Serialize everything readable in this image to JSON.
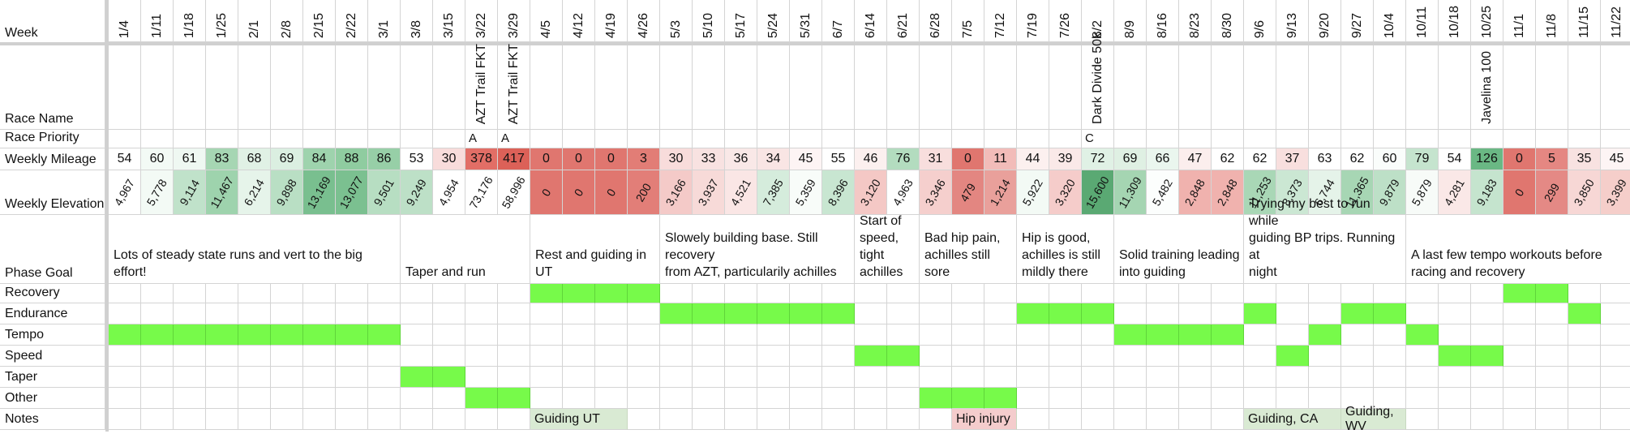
{
  "row_labels": {
    "week": "Week",
    "race_name": "Race Name",
    "race_priority": "Race Priority",
    "weekly_mileage": "Weekly Mileage",
    "weekly_elevation": "Weekly Elevation",
    "phase_goal": "Phase Goal",
    "recovery": "Recovery",
    "endurance": "Endurance",
    "tempo": "Tempo",
    "speed": "Speed",
    "taper": "Taper",
    "other": "Other",
    "notes": "Notes"
  },
  "weeks": [
    "1/4",
    "1/11",
    "1/18",
    "1/25",
    "2/1",
    "2/8",
    "2/15",
    "2/22",
    "3/1",
    "3/8",
    "3/15",
    "3/22",
    "3/29",
    "4/5",
    "4/12",
    "4/19",
    "4/26",
    "5/3",
    "5/10",
    "5/17",
    "5/24",
    "5/31",
    "6/7",
    "6/14",
    "6/21",
    "6/28",
    "7/5",
    "7/12",
    "7/19",
    "7/26",
    "8/2",
    "8/9",
    "8/16",
    "8/23",
    "8/30",
    "9/6",
    "9/13",
    "9/20",
    "9/27",
    "10/4",
    "10/11",
    "10/18",
    "10/25",
    "11/1",
    "11/8",
    "11/15",
    "11/22"
  ],
  "race_names": {
    "11": "AZT Trail FKT",
    "12": "AZT Trail FKT",
    "30": "Dark Divide 50k",
    "42": "Javelina 100"
  },
  "race_priorities": {
    "11": "A",
    "12": "A",
    "30": "C"
  },
  "weekly_mileage": [
    "54",
    "60",
    "61",
    "83",
    "68",
    "69",
    "84",
    "88",
    "86",
    "53",
    "30",
    "378",
    "417",
    "0",
    "0",
    "0",
    "3",
    "30",
    "33",
    "36",
    "34",
    "45",
    "55",
    "46",
    "76",
    "31",
    "0",
    "11",
    "44",
    "39",
    "72",
    "69",
    "66",
    "47",
    "62",
    "62",
    "37",
    "63",
    "62",
    "60",
    "79",
    "54",
    "126",
    "0",
    "5",
    "35",
    "45"
  ],
  "mileage_colors": [
    "#ffffff",
    "#f3faf5",
    "#eff8f2",
    "#a6d6b3",
    "#e0f1e5",
    "#dbefe1",
    "#9ed3ad",
    "#8fcca0",
    "#97cfa7",
    "#ffffff",
    "#f8dcdb",
    "#e26e66",
    "#dc6158",
    "#e0766f",
    "#e0766f",
    "#e0766f",
    "#e27d76",
    "#f8dcdb",
    "#f8e2e1",
    "#f9e8e7",
    "#f9e5e4",
    "#fdf4f4",
    "#ffffff",
    "#fcf0ef",
    "#b3dcbf",
    "#f8dedd",
    "#e0766f",
    "#f2bcb9",
    "#fcf0ef",
    "#fae9e8",
    "#e0f1e5",
    "#dff0e3",
    "#eaf6ee",
    "#fbeeed",
    "#ffffff",
    "#ffffff",
    "#f8dfde",
    "#ffffff",
    "#ffffff",
    "#fafdfb",
    "#c5e4ce",
    "#ffffff",
    "#6ab884",
    "#e0766f",
    "#e58782",
    "#f8e2e1",
    "#fdf4f4"
  ],
  "weekly_elevation": [
    "4,967",
    "5,778",
    "9,114",
    "11,467",
    "6,214",
    "9,898",
    "13,169",
    "13,077",
    "9,501",
    "9,249",
    "4,954",
    "73,176",
    "58,996",
    "0",
    "0",
    "0",
    "200",
    "3,166",
    "3,937",
    "4,521",
    "7,385",
    "5,359",
    "8,396",
    "3,120",
    "4,963",
    "3,346",
    "479",
    "1,214",
    "5,922",
    "3,320",
    "15,600",
    "11,309",
    "5,482",
    "2,848",
    "2,848",
    "11,253",
    "8,373",
    "6,744",
    "11,365",
    "9,879",
    "5,879",
    "4,281",
    "9,183",
    "0",
    "299",
    "3,850",
    "3,399"
  ],
  "elevation_colors": [
    "#ffffff",
    "#f3faf5",
    "#c0e2ca",
    "#9ed3ad",
    "#e6f4ea",
    "#b9dfc4",
    "#79bf8f",
    "#7bc090",
    "#b7dec2",
    "#bde0c7",
    "#ffffff",
    "#ffffff",
    "#ffffff",
    "#e0766f",
    "#e0766f",
    "#e0766f",
    "#e27e78",
    "#f4cac8",
    "#f7dad8",
    "#fae6e5",
    "#d5ecdc",
    "#f8fcf9",
    "#c8e6d1",
    "#f4c8c5",
    "#ffffff",
    "#f5cfcd",
    "#e38681",
    "#e9a09b",
    "#f3faf5",
    "#f5ccca",
    "#5aa973",
    "#a5d5b2",
    "#fcfefd",
    "#f0b2ae",
    "#f0b2ae",
    "#a9d7b6",
    "#cbe7d3",
    "#e5f3e9",
    "#a7d6b4",
    "#bde0c7",
    "#f7fbf8",
    "#fae8e7",
    "#c5e4ce",
    "#e0766f",
    "#e48985",
    "#f7d7d5",
    "#f5ceca"
  ],
  "phase_goals": [
    {
      "text": "Lots of steady state runs and vert to the big effort!",
      "start": 0,
      "span": 9
    },
    {
      "text": "Taper and run",
      "start": 9,
      "span": 4
    },
    {
      "text": "Rest and guiding in UT",
      "start": 13,
      "span": 4
    },
    {
      "text": "Slowely building base. Still recovery\nfrom AZT, particularily achilles",
      "start": 17,
      "span": 6
    },
    {
      "text": "Start of\nspeed,\ntight\nachilles",
      "start": 23,
      "span": 2
    },
    {
      "text": "Bad hip pain,\nachilles still sore",
      "start": 25,
      "span": 3
    },
    {
      "text": "Hip is good,\nachilles is still\nmildly there",
      "start": 28,
      "span": 3
    },
    {
      "text": "Solid training leading\ninto guiding",
      "start": 31,
      "span": 4
    },
    {
      "text": "Trying my best to run while\nguiding BP trips. Running at\nnight",
      "start": 35,
      "span": 5
    },
    {
      "text": "A last few tempo workouts before\nracing and recovery",
      "start": 40,
      "span": 7
    }
  ],
  "phase_rows": {
    "recovery": [
      13,
      14,
      15,
      16,
      43,
      44
    ],
    "endurance": [
      17,
      18,
      19,
      20,
      21,
      22,
      28,
      29,
      30,
      35,
      38,
      39,
      45
    ],
    "tempo": [
      0,
      1,
      2,
      3,
      4,
      5,
      6,
      7,
      8,
      31,
      32,
      33,
      34,
      37,
      40
    ],
    "speed": [
      23,
      24,
      36,
      41,
      42
    ],
    "taper": [
      9,
      10
    ],
    "other": [
      11,
      12,
      25,
      26,
      27
    ]
  },
  "notes": [
    {
      "text": "Guiding UT",
      "start": 13,
      "span": 3,
      "color": "#d9ead3"
    },
    {
      "text": "Hip injury",
      "start": 26,
      "span": 2,
      "color": "#f4cccc"
    },
    {
      "text": "Guiding, CA",
      "start": 35,
      "span": 3,
      "color": "#d9ead3"
    },
    {
      "text": "Guiding, WV",
      "start": 38,
      "span": 2,
      "color": "#d9ead3"
    }
  ],
  "colors": {
    "phase_fill": "#77fa4a",
    "grid_line": "#d4d4d4"
  }
}
